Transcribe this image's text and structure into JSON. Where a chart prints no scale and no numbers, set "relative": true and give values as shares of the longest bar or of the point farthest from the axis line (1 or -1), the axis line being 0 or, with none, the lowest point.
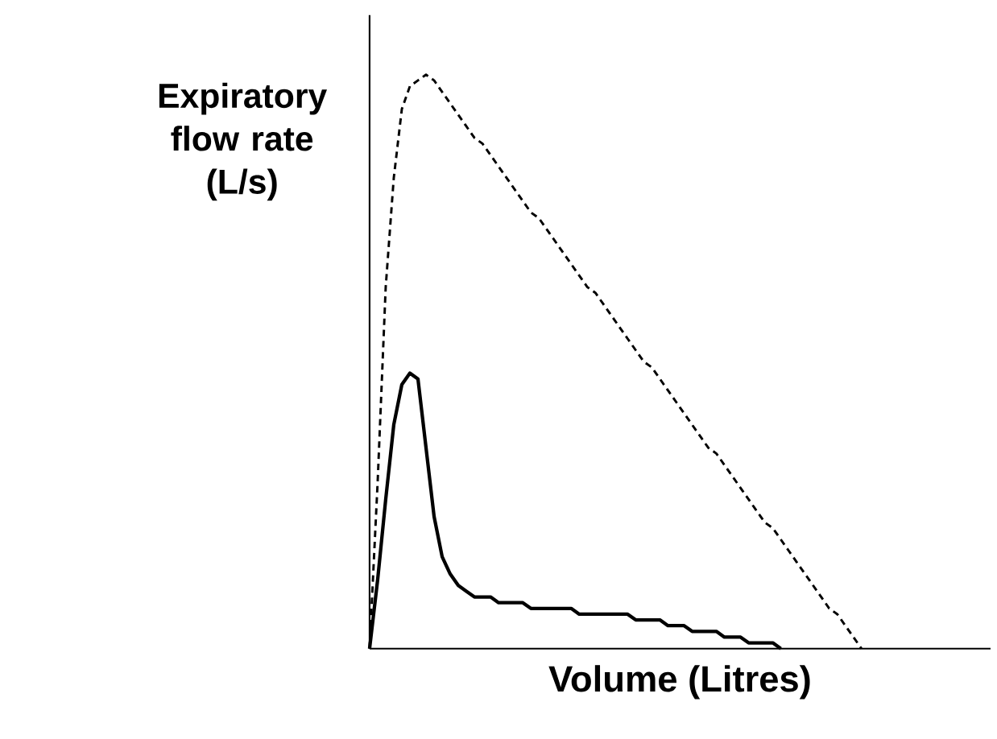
{
  "chart_data": {
    "type": "line",
    "relative": true,
    "xlabel": "Volume (Litres)",
    "ylabel": "Expiratory flow rate (L/s)",
    "marker": "none",
    "categories": [
      null,
      null,
      null,
      null,
      null,
      null,
      null,
      null,
      null,
      null,
      null,
      null,
      null,
      null,
      null,
      null,
      null,
      null,
      null,
      null,
      null,
      null,
      null,
      null,
      null,
      null,
      null,
      null,
      null,
      null,
      null,
      null,
      null,
      null,
      null,
      null,
      null,
      null,
      null,
      null,
      null,
      null,
      null,
      null,
      null,
      null,
      null,
      null,
      null,
      null,
      null,
      null,
      null,
      null,
      null,
      null,
      null,
      null,
      null,
      null,
      null,
      null,
      null,
      null,
      null,
      null,
      null,
      null,
      null,
      null,
      null,
      null,
      null,
      null,
      null,
      null,
      null,
      null
    ],
    "series": [
      {
        "color": "#000000",
        "line_style": "dashed",
        "values": [
          0,
          0.29,
          0.63,
          0.82,
          0.94,
          0.98,
          0.99,
          1,
          0.99,
          0.97,
          0.95,
          0.93,
          0.91,
          0.89,
          0.88,
          0.86,
          0.84,
          0.82,
          0.8,
          0.78,
          0.76,
          0.75,
          0.73,
          0.71,
          0.69,
          0.67,
          0.65,
          0.63,
          0.62,
          0.6,
          0.58,
          0.56,
          0.54,
          0.52,
          0.5,
          0.49,
          0.47,
          0.45,
          0.43,
          0.41,
          0.39,
          0.37,
          0.35,
          0.34,
          0.32,
          0.3,
          0.28,
          0.26,
          0.24,
          0.22,
          0.21,
          0.19,
          0.17,
          0.15,
          0.13,
          0.11,
          0.09,
          0.07,
          0.06,
          0.04,
          0.02,
          0,
          null,
          null,
          null,
          null,
          null,
          null,
          null,
          null,
          null,
          null,
          null,
          null,
          null,
          null,
          null,
          null
        ]
      },
      {
        "color": "#000000",
        "line_style": "solid",
        "values": [
          0,
          0.12,
          0.26,
          0.39,
          0.46,
          0.48,
          0.47,
          0.35,
          0.23,
          0.16,
          0.13,
          0.11,
          0.1,
          0.09,
          0.09,
          0.09,
          0.08,
          0.08,
          0.08,
          0.08,
          0.07,
          0.07,
          0.07,
          0.07,
          0.07,
          0.07,
          0.06,
          0.06,
          0.06,
          0.06,
          0.06,
          0.06,
          0.06,
          0.05,
          0.05,
          0.05,
          0.05,
          0.04,
          0.04,
          0.04,
          0.03,
          0.03,
          0.03,
          0.03,
          0.02,
          0.02,
          0.02,
          0.01,
          0.01,
          0.01,
          0.01,
          0,
          null,
          null,
          null,
          null,
          null,
          null,
          null,
          null,
          null,
          null,
          null,
          null,
          null,
          null,
          null,
          null,
          null,
          null,
          null,
          null,
          null,
          null,
          null,
          null,
          null,
          null
        ]
      }
    ]
  }
}
